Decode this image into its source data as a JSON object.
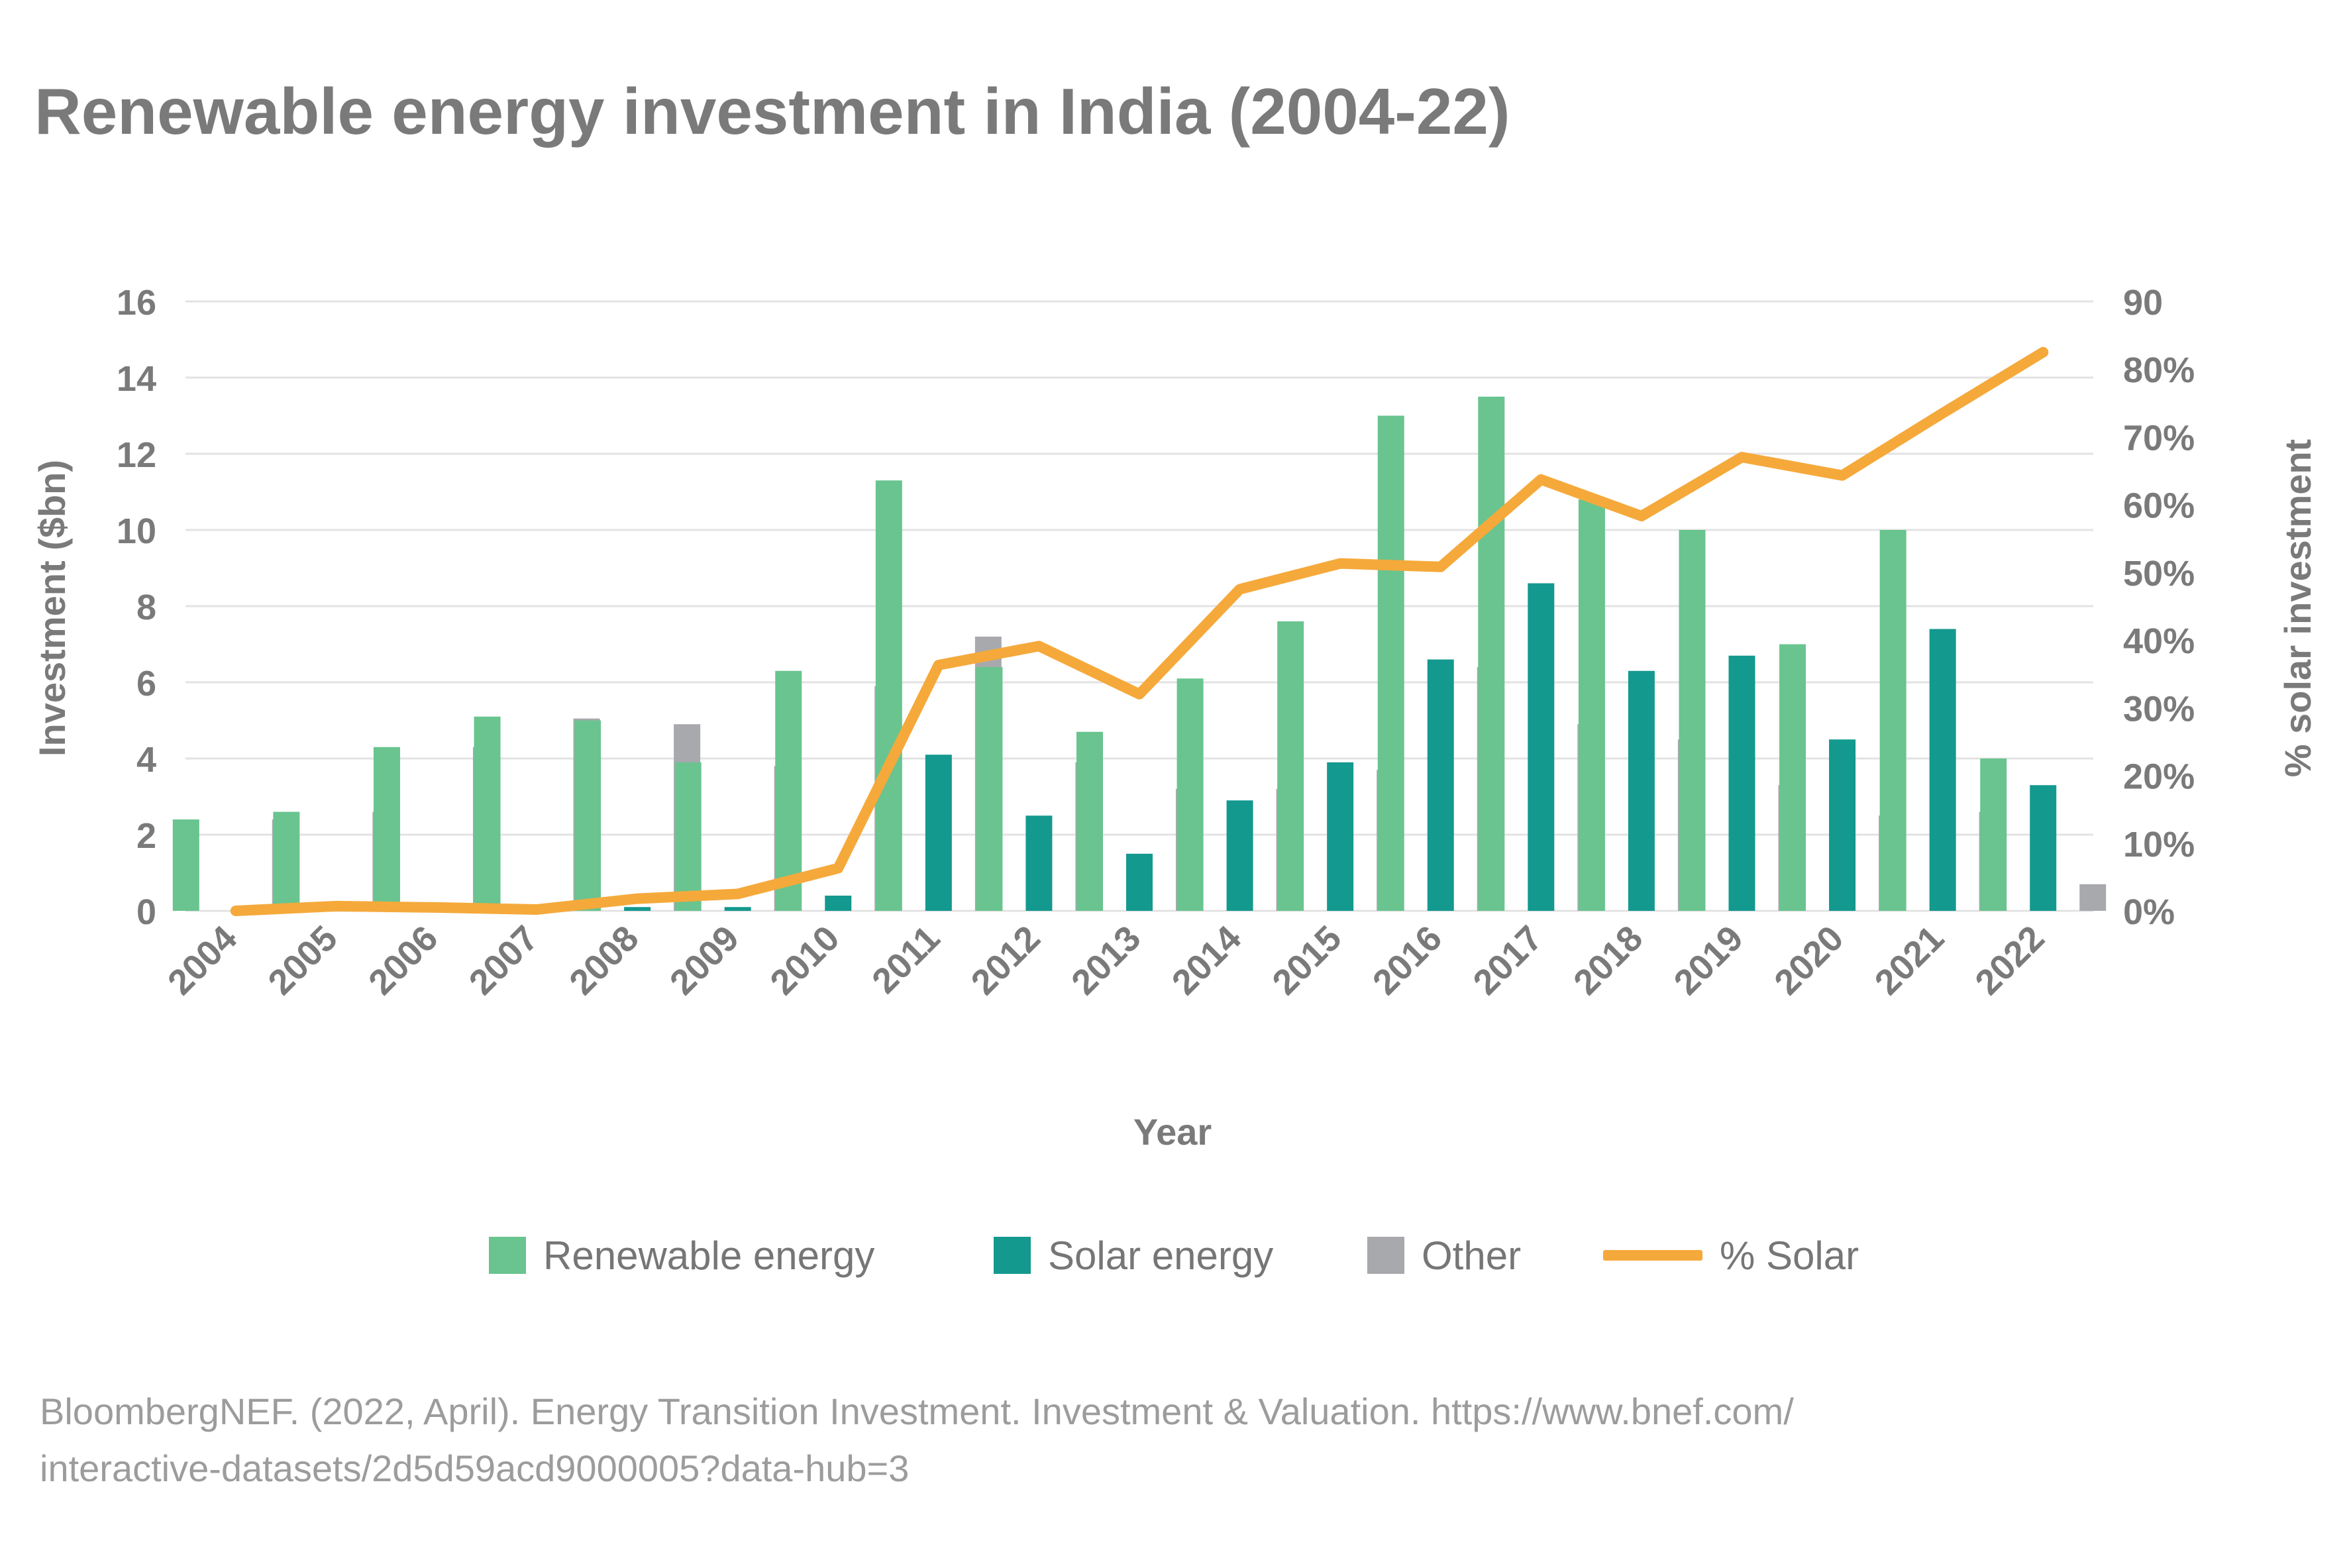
{
  "title": "Renewable energy investment in India (2004-22)",
  "source": {
    "line1": "BloombergNEF. (2022, April). Energy Transition Investment. Investment & Valuation. https://www.bnef.com/",
    "line2": "interactive-datasets/2d5d59acd9000005?data-hub=3"
  },
  "colors": {
    "renewable": "#69c48f",
    "solar": "#14998f",
    "other": "#a8a9ad",
    "pct_solar": "#f5a93b",
    "grid": "#e3e3e3",
    "text": "#7a7a7a"
  },
  "legend": [
    {
      "label": "Renewable energy",
      "kind": "swatch",
      "color": "#69c48f"
    },
    {
      "label": "Solar energy",
      "kind": "swatch",
      "color": "#14998f"
    },
    {
      "label": "Other",
      "kind": "swatch",
      "color": "#a8a9ad"
    },
    {
      "label": "% Solar",
      "kind": "line",
      "color": "#f5a93b"
    }
  ],
  "chart_data": {
    "type": "bar",
    "title": "Renewable energy investment in India (2004-22)",
    "xlabel": "Year",
    "ylabel": "Investment ($bn)",
    "y2label": "% solar investment",
    "ylim": [
      0,
      16
    ],
    "yticks": [
      "0",
      "2",
      "4",
      "6",
      "8",
      "10",
      "12",
      "14",
      "16"
    ],
    "y2lim": [
      0,
      90
    ],
    "y2ticks": [
      "0%",
      "10%",
      "20%",
      "30%",
      "40%",
      "50%",
      "60%",
      "70%",
      "80%",
      "90"
    ],
    "grid": true,
    "legend_position": "bottom",
    "categories": [
      "2004",
      "2005",
      "2006",
      "2007",
      "2008",
      "2009",
      "2010",
      "2011",
      "2012",
      "2013",
      "2014",
      "2015",
      "2016",
      "2017",
      "2018",
      "2019",
      "2020",
      "2021",
      "2022"
    ],
    "series": [
      {
        "name": "Renewable energy",
        "type": "bar",
        "axis": "left",
        "values": [
          2.4,
          2.6,
          4.3,
          5.1,
          5.0,
          3.9,
          6.3,
          11.3,
          6.4,
          4.7,
          6.1,
          7.6,
          13.0,
          13.5,
          10.8,
          10.0,
          7.0,
          10.0,
          4.0
        ]
      },
      {
        "name": "Solar energy",
        "type": "bar",
        "axis": "left",
        "values": [
          0.0,
          0.0,
          0.0,
          0.05,
          0.1,
          0.1,
          0.4,
          4.1,
          2.5,
          1.5,
          2.9,
          3.9,
          6.6,
          8.6,
          6.3,
          6.7,
          4.5,
          7.4,
          3.3
        ]
      },
      {
        "name": "Other",
        "type": "bar",
        "axis": "left",
        "values": [
          2.4,
          2.6,
          4.3,
          5.05,
          4.9,
          3.8,
          5.9,
          7.2,
          3.9,
          3.2,
          3.2,
          3.7,
          6.4,
          4.9,
          4.5,
          3.3,
          2.5,
          2.6,
          0.7
        ]
      },
      {
        "name": "% Solar",
        "type": "line",
        "axis": "right",
        "values": [
          0,
          0.7,
          0.5,
          0.2,
          1.8,
          2.5,
          6.3,
          36.3,
          39.1,
          32.0,
          47.5,
          51.3,
          50.8,
          63.7,
          58.3,
          67.0,
          64.3,
          73.5,
          82.5
        ]
      }
    ]
  }
}
